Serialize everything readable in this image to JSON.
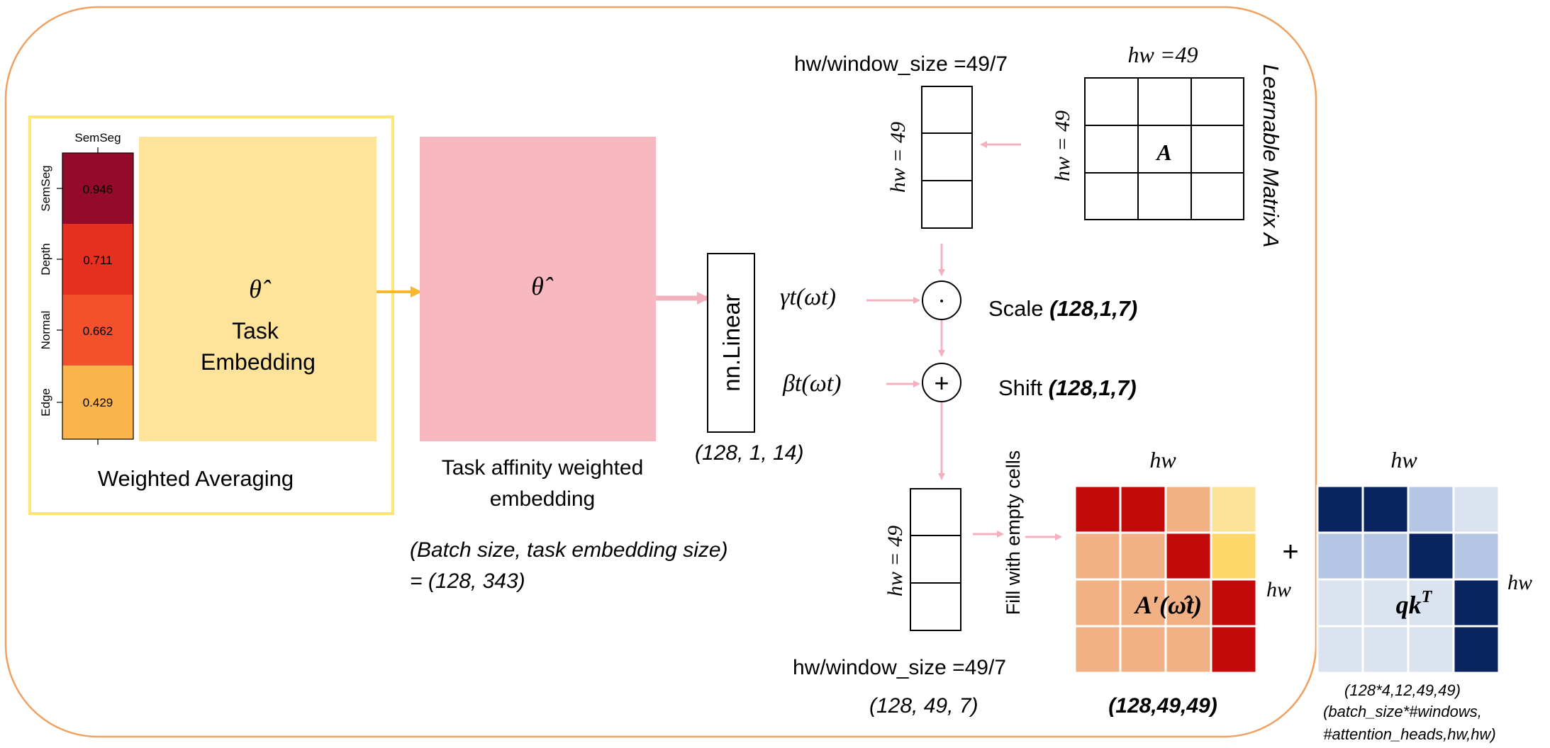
{
  "heatmap": {
    "column_label": "SemSeg",
    "rows": [
      {
        "label": "SemSeg",
        "value": "0.946",
        "color": "#940a2a"
      },
      {
        "label": "Depth",
        "value": "0.711",
        "color": "#e4301e"
      },
      {
        "label": "Normal",
        "value": "0.662",
        "color": "#f5502c"
      },
      {
        "label": "Edge",
        "value": "0.429",
        "color": "#fcb44c"
      }
    ],
    "caption": "Weighted Averaging"
  },
  "task_embedding": {
    "symbol": "θ̂",
    "line1": "Task",
    "line2": "Embedding",
    "color": "#fde49a"
  },
  "affinity_embedding": {
    "symbol": "θ̂",
    "caption_line1": "Task affinity weighted",
    "caption_line2": "embedding",
    "color": "#f8b8c0"
  },
  "batch_note": {
    "line1": "(Batch size, task embedding size)",
    "line2": "= (128, 343)"
  },
  "linear": {
    "label": "nn.Linear",
    "shape": "(128, 1, 14)"
  },
  "window_top": {
    "caption": "hw/window_size =49/7",
    "side_label": "hw = 49"
  },
  "learnable": {
    "top_label": "hw =49",
    "side_label": "hw = 49",
    "cell_label": "A",
    "right_label": "Learnable Matrix A"
  },
  "ops": {
    "gamma": "γt(ωt)",
    "beta": "βt(ωt)",
    "scale_label": "Scale",
    "scale_shape": "(128,1,7)",
    "shift_label": "Shift",
    "shift_shape": "(128,1,7)",
    "mult_symbol": "·",
    "add_symbol": "+"
  },
  "window_bottom": {
    "side_label": "hw = 49",
    "caption": "hw/window_size =49/7",
    "shape": "(128, 49, 7)",
    "fill_label": "Fill with empty cells"
  },
  "aprime": {
    "top_label": "hw",
    "side_label": "hw",
    "center_label": "A′(ω̂t)",
    "shape": "(128,49,49)",
    "grid_colors": [
      [
        "#c20a0a",
        "#c20a0a",
        "#f2b184",
        "#fde39a"
      ],
      [
        "#f2b184",
        "#f2b184",
        "#c20a0a",
        "#fdd769"
      ],
      [
        "#f2b184",
        "#f2b184",
        "#f2b184",
        "#c20a0a"
      ],
      [
        "#f2b184",
        "#f2b184",
        "#f2b184",
        "#c20a0a"
      ]
    ]
  },
  "plus_sign": "+",
  "qk": {
    "top_label": "hw",
    "side_label": "hw",
    "center_label": "qkT",
    "shape_line1": "(128*4,12,49,49)",
    "shape_line2": "(batch_size*#windows,",
    "shape_line3": "#attention_heads,hw,hw)",
    "grid_colors": [
      [
        "#0a2460",
        "#0a2460",
        "#b4c6e4",
        "#dbe3f1"
      ],
      [
        "#b4c6e4",
        "#b4c6e4",
        "#0a2460",
        "#b4c6e4"
      ],
      [
        "#dbe3f1",
        "#dbe3f1",
        "#dbe3f1",
        "#0a2460"
      ],
      [
        "#dbe3f1",
        "#dbe3f1",
        "#dbe3f1",
        "#0a2460"
      ]
    ]
  },
  "colors": {
    "frame": "#f0a060",
    "left_border": "#fde57a",
    "arrow_pink": "#f4b0bc",
    "arrow_yellow": "#f8b82a"
  }
}
